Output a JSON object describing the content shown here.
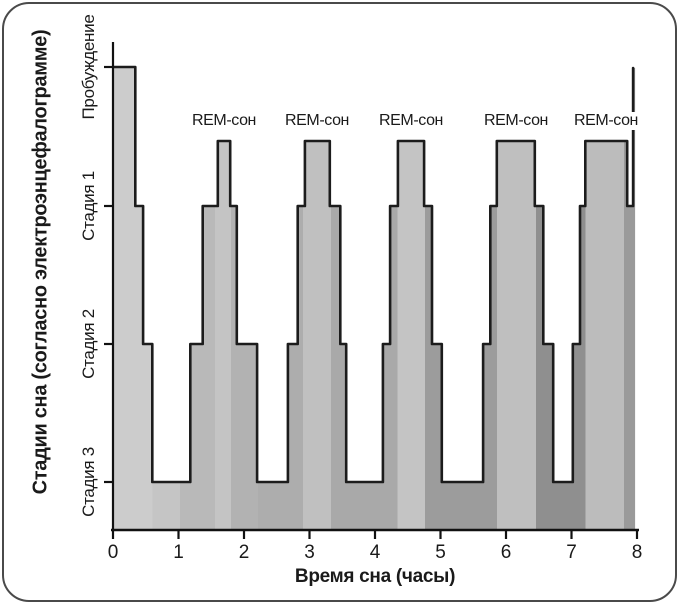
{
  "chart_data": {
    "type": "area",
    "subtype": "hypnogram-step-chart",
    "title": "",
    "xlabel": "Время сна (часы)",
    "ylabel": "Стадии сна (согласно электроэнцефалограмме)",
    "x_ticks": [
      "0",
      "1",
      "2",
      "3",
      "4",
      "5",
      "6",
      "7",
      "8"
    ],
    "x_range_hours": [
      0,
      8
    ],
    "y_stage_labels": [
      "Пробуждение",
      "Стадия 1",
      "Стадия 2",
      "Стадия 3"
    ],
    "grid": "off",
    "legend": "none",
    "rem_label": "REM-сон",
    "rem_annotations": [
      {
        "label": "REM-сон",
        "center_hour": 1.7
      },
      {
        "label": "REM-сон",
        "center_hour": 3.12
      },
      {
        "label": "REM-сон",
        "center_hour": 4.55
      },
      {
        "label": "REM-сон",
        "center_hour": 6.15
      },
      {
        "label": "REM-сон",
        "center_hour": 7.53
      }
    ],
    "rem_periods_hours": [
      [
        1.6,
        1.79
      ],
      [
        2.93,
        3.31
      ],
      [
        4.35,
        4.75
      ],
      [
        5.86,
        6.44
      ],
      [
        7.21,
        7.85
      ]
    ],
    "stages_timeline": [
      {
        "t": 0.0,
        "level": "wake"
      },
      {
        "t": 0.34,
        "level": "s1"
      },
      {
        "t": 0.46,
        "level": "s2"
      },
      {
        "t": 0.6,
        "level": "s3"
      },
      {
        "t": 1.18,
        "level": "s2"
      },
      {
        "t": 1.37,
        "level": "s1"
      },
      {
        "t": 1.6,
        "level": "rem"
      },
      {
        "t": 1.79,
        "level": "s1"
      },
      {
        "t": 1.89,
        "level": "s2"
      },
      {
        "t": 2.2,
        "level": "s3"
      },
      {
        "t": 2.67,
        "level": "s2"
      },
      {
        "t": 2.82,
        "level": "s1"
      },
      {
        "t": 2.93,
        "level": "rem"
      },
      {
        "t": 3.31,
        "level": "s1"
      },
      {
        "t": 3.47,
        "level": "s2"
      },
      {
        "t": 3.56,
        "level": "s3"
      },
      {
        "t": 4.12,
        "level": "s2"
      },
      {
        "t": 4.23,
        "level": "s1"
      },
      {
        "t": 4.35,
        "level": "rem"
      },
      {
        "t": 4.75,
        "level": "s1"
      },
      {
        "t": 4.87,
        "level": "s2"
      },
      {
        "t": 5.02,
        "level": "s3"
      },
      {
        "t": 5.65,
        "level": "s2"
      },
      {
        "t": 5.76,
        "level": "s1"
      },
      {
        "t": 5.86,
        "level": "rem"
      },
      {
        "t": 6.44,
        "level": "s1"
      },
      {
        "t": 6.57,
        "level": "s2"
      },
      {
        "t": 6.72,
        "level": "s3"
      },
      {
        "t": 7.02,
        "level": "s2"
      },
      {
        "t": 7.13,
        "level": "s1"
      },
      {
        "t": 7.21,
        "level": "rem"
      },
      {
        "t": 7.85,
        "level": "s1"
      }
    ],
    "final_awakening_hour": 7.94,
    "colors": {
      "outline": "#1c1c1c",
      "axis": "#111111",
      "text": "#1a1a1a",
      "card_border": "#4a4a4a"
    },
    "fill_bands": [
      {
        "from_hour": 0.0,
        "color": "#cccccc"
      },
      {
        "from_hour": 0.6,
        "color": "#c5c5c5"
      },
      {
        "from_hour": 1.02,
        "color": "#b9b9b9"
      },
      {
        "from_hour": 1.56,
        "color": "#c4c4c4"
      },
      {
        "from_hour": 1.8,
        "color": "#b2b2b2"
      },
      {
        "from_hour": 2.21,
        "color": "#adadad"
      },
      {
        "from_hour": 2.9,
        "color": "#c0c0c0"
      },
      {
        "from_hour": 3.33,
        "color": "#a9a9a9"
      },
      {
        "from_hour": 4.34,
        "color": "#c4c4c4"
      },
      {
        "from_hour": 4.76,
        "color": "#9c9c9c"
      },
      {
        "from_hour": 5.86,
        "color": "#bfbfbf"
      },
      {
        "from_hour": 6.46,
        "color": "#8f8f8f"
      },
      {
        "from_hour": 7.21,
        "color": "#bcbcbc"
      },
      {
        "from_hour": 7.8,
        "color": "#9a9a9a"
      }
    ]
  }
}
